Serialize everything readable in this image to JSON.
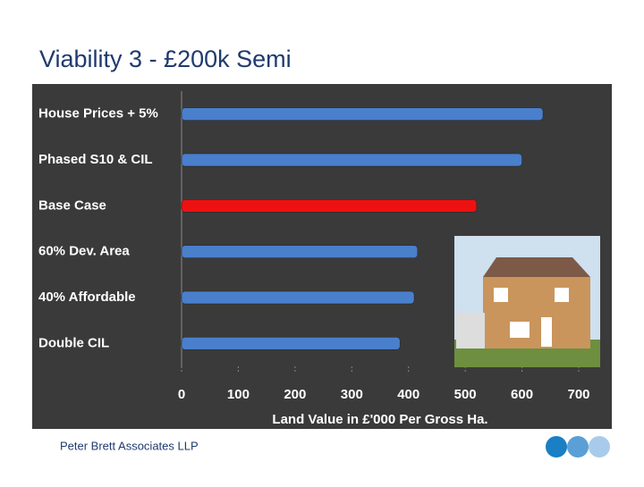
{
  "slide": {
    "title": "Viability 3 - £200k Semi",
    "footer": "Peter Brett Associates LLP"
  },
  "chart_data": {
    "type": "bar",
    "orientation": "horizontal",
    "categories": [
      "House Prices + 5%",
      "Phased S10 & CIL",
      "Base Case",
      "60% Dev. Area",
      "40% Affordable",
      "Double CIL"
    ],
    "values": [
      637,
      600,
      520,
      416,
      410,
      385
    ],
    "colors": [
      "#4a7fcc",
      "#4a7fcc",
      "#ee1111",
      "#4a7fcc",
      "#4a7fcc",
      "#4a7fcc"
    ],
    "xlabel": "Land Value in £'000 Per Gross Ha.",
    "xlim": [
      0,
      700
    ],
    "xticks": [
      0,
      100,
      200,
      300,
      400,
      500,
      600,
      700
    ]
  }
}
